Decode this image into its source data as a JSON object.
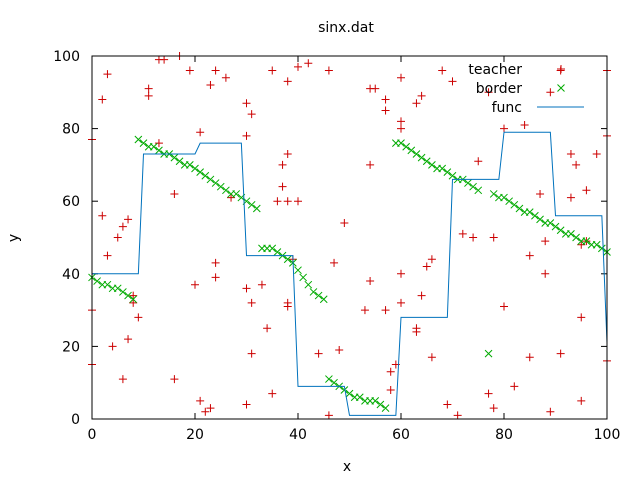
{
  "chart_data": {
    "type": "scatter",
    "title": "sinx.dat",
    "xlabel": "x",
    "ylabel": "y",
    "xlim": [
      0,
      100
    ],
    "ylim": [
      0,
      100
    ],
    "xticks": [
      0,
      20,
      40,
      60,
      80,
      100
    ],
    "yticks": [
      0,
      20,
      40,
      60,
      80,
      100
    ],
    "legend_position": "top-right",
    "series": [
      {
        "name": "teacher",
        "marker": "plus",
        "color": "#cc0000",
        "points": [
          [
            0,
            77
          ],
          [
            0,
            30
          ],
          [
            0,
            15
          ],
          [
            2,
            88
          ],
          [
            2,
            56
          ],
          [
            3,
            95
          ],
          [
            3,
            45
          ],
          [
            4,
            20
          ],
          [
            5,
            50
          ],
          [
            6,
            53
          ],
          [
            6,
            11
          ],
          [
            7,
            55
          ],
          [
            7,
            22
          ],
          [
            8,
            34
          ],
          [
            8,
            32
          ],
          [
            9,
            28
          ],
          [
            11,
            91
          ],
          [
            11,
            89
          ],
          [
            13,
            99
          ],
          [
            13,
            76
          ],
          [
            14,
            99
          ],
          [
            16,
            62
          ],
          [
            16,
            11
          ],
          [
            17,
            100
          ],
          [
            19,
            96
          ],
          [
            20,
            37
          ],
          [
            21,
            79
          ],
          [
            21,
            5
          ],
          [
            22,
            2
          ],
          [
            23,
            3
          ],
          [
            23,
            92
          ],
          [
            24,
            96
          ],
          [
            24,
            43
          ],
          [
            24,
            39
          ],
          [
            26,
            94
          ],
          [
            27,
            61
          ],
          [
            30,
            87
          ],
          [
            30,
            78
          ],
          [
            30,
            36
          ],
          [
            30,
            4
          ],
          [
            31,
            84
          ],
          [
            31,
            32
          ],
          [
            31,
            18
          ],
          [
            33,
            37
          ],
          [
            34,
            25
          ],
          [
            35,
            96
          ],
          [
            35,
            7
          ],
          [
            36,
            60
          ],
          [
            37,
            70
          ],
          [
            37,
            64
          ],
          [
            38,
            73
          ],
          [
            38,
            32
          ],
          [
            38,
            31
          ],
          [
            38,
            93
          ],
          [
            38,
            60
          ],
          [
            39,
            44
          ],
          [
            40,
            60
          ],
          [
            40,
            97
          ],
          [
            42,
            98
          ],
          [
            44,
            18
          ],
          [
            46,
            96
          ],
          [
            46,
            1
          ],
          [
            47,
            43
          ],
          [
            48,
            19
          ],
          [
            49,
            54
          ],
          [
            53,
            30
          ],
          [
            54,
            91
          ],
          [
            54,
            70
          ],
          [
            54,
            38
          ],
          [
            55,
            91
          ],
          [
            57,
            88
          ],
          [
            57,
            85
          ],
          [
            57,
            30
          ],
          [
            58,
            13
          ],
          [
            58,
            8
          ],
          [
            59,
            15
          ],
          [
            60,
            94
          ],
          [
            60,
            82
          ],
          [
            60,
            80
          ],
          [
            60,
            40
          ],
          [
            60,
            32
          ],
          [
            63,
            87
          ],
          [
            63,
            25
          ],
          [
            63,
            24
          ],
          [
            64,
            89
          ],
          [
            64,
            34
          ],
          [
            65,
            42
          ],
          [
            66,
            44
          ],
          [
            66,
            17
          ],
          [
            68,
            96
          ],
          [
            69,
            4
          ],
          [
            70,
            93
          ],
          [
            71,
            1
          ],
          [
            72,
            51
          ],
          [
            74,
            50
          ],
          [
            75,
            71
          ],
          [
            77,
            7
          ],
          [
            77,
            90
          ],
          [
            78,
            50
          ],
          [
            78,
            3
          ],
          [
            80,
            80
          ],
          [
            80,
            31
          ],
          [
            82,
            9
          ],
          [
            84,
            81
          ],
          [
            85,
            45
          ],
          [
            85,
            17
          ],
          [
            87,
            62
          ],
          [
            88,
            49
          ],
          [
            88,
            40
          ],
          [
            89,
            90
          ],
          [
            89,
            2
          ],
          [
            91,
            96
          ],
          [
            91,
            18
          ],
          [
            93,
            73
          ],
          [
            93,
            61
          ],
          [
            94,
            70
          ],
          [
            95,
            48
          ],
          [
            95,
            28
          ],
          [
            95,
            5
          ],
          [
            96,
            63
          ],
          [
            96,
            49
          ],
          [
            98,
            73
          ],
          [
            100,
            96
          ],
          [
            100,
            78
          ],
          [
            100,
            16
          ]
        ]
      },
      {
        "name": "border",
        "marker": "cross",
        "color": "#00aa00",
        "points": [
          [
            0,
            39
          ],
          [
            1,
            38
          ],
          [
            2,
            37
          ],
          [
            3,
            37
          ],
          [
            4,
            36
          ],
          [
            5,
            36
          ],
          [
            6,
            35
          ],
          [
            7,
            34
          ],
          [
            8,
            33
          ],
          [
            9,
            77
          ],
          [
            10,
            76
          ],
          [
            11,
            75
          ],
          [
            12,
            75
          ],
          [
            13,
            74
          ],
          [
            14,
            73
          ],
          [
            15,
            73
          ],
          [
            16,
            72
          ],
          [
            17,
            71
          ],
          [
            18,
            70
          ],
          [
            19,
            70
          ],
          [
            20,
            69
          ],
          [
            21,
            68
          ],
          [
            22,
            67
          ],
          [
            23,
            66
          ],
          [
            24,
            65
          ],
          [
            25,
            64
          ],
          [
            26,
            63
          ],
          [
            27,
            62
          ],
          [
            28,
            62
          ],
          [
            29,
            61
          ],
          [
            30,
            60
          ],
          [
            31,
            59
          ],
          [
            32,
            58
          ],
          [
            33,
            47
          ],
          [
            34,
            47
          ],
          [
            35,
            47
          ],
          [
            36,
            46
          ],
          [
            37,
            45
          ],
          [
            38,
            44
          ],
          [
            39,
            43
          ],
          [
            40,
            41
          ],
          [
            41,
            39
          ],
          [
            42,
            37
          ],
          [
            43,
            35
          ],
          [
            44,
            34
          ],
          [
            45,
            33
          ],
          [
            46,
            11
          ],
          [
            47,
            10
          ],
          [
            48,
            9
          ],
          [
            49,
            8
          ],
          [
            50,
            7
          ],
          [
            51,
            6
          ],
          [
            52,
            6
          ],
          [
            53,
            5
          ],
          [
            54,
            5
          ],
          [
            55,
            5
          ],
          [
            56,
            4
          ],
          [
            57,
            3
          ],
          [
            59,
            76
          ],
          [
            60,
            76
          ],
          [
            61,
            75
          ],
          [
            62,
            74
          ],
          [
            63,
            73
          ],
          [
            64,
            72
          ],
          [
            65,
            71
          ],
          [
            66,
            70
          ],
          [
            67,
            69
          ],
          [
            68,
            69
          ],
          [
            69,
            68
          ],
          [
            70,
            67
          ],
          [
            71,
            66
          ],
          [
            72,
            66
          ],
          [
            73,
            65
          ],
          [
            74,
            64
          ],
          [
            75,
            63
          ],
          [
            77,
            18
          ],
          [
            78,
            62
          ],
          [
            79,
            61
          ],
          [
            80,
            61
          ],
          [
            81,
            60
          ],
          [
            82,
            59
          ],
          [
            83,
            58
          ],
          [
            84,
            57
          ],
          [
            85,
            57
          ],
          [
            86,
            56
          ],
          [
            87,
            55
          ],
          [
            88,
            54
          ],
          [
            89,
            54
          ],
          [
            90,
            53
          ],
          [
            91,
            52
          ],
          [
            92,
            51
          ],
          [
            93,
            51
          ],
          [
            94,
            50
          ],
          [
            95,
            49
          ],
          [
            96,
            49
          ],
          [
            97,
            48
          ],
          [
            98,
            48
          ],
          [
            99,
            47
          ],
          [
            100,
            46
          ]
        ]
      },
      {
        "name": "func",
        "marker": "line",
        "color": "#0072bd",
        "points": [
          [
            0,
            40
          ],
          [
            9,
            40
          ],
          [
            10,
            73
          ],
          [
            20,
            73
          ],
          [
            21,
            76
          ],
          [
            29,
            76
          ],
          [
            30,
            45
          ],
          [
            39,
            45
          ],
          [
            40,
            9
          ],
          [
            49,
            9
          ],
          [
            50,
            1
          ],
          [
            59,
            1
          ],
          [
            60,
            28
          ],
          [
            69,
            28
          ],
          [
            70,
            66
          ],
          [
            79,
            66
          ],
          [
            80,
            79
          ],
          [
            89,
            79
          ],
          [
            90,
            56
          ],
          [
            99,
            56
          ],
          [
            100,
            21
          ]
        ]
      }
    ]
  }
}
